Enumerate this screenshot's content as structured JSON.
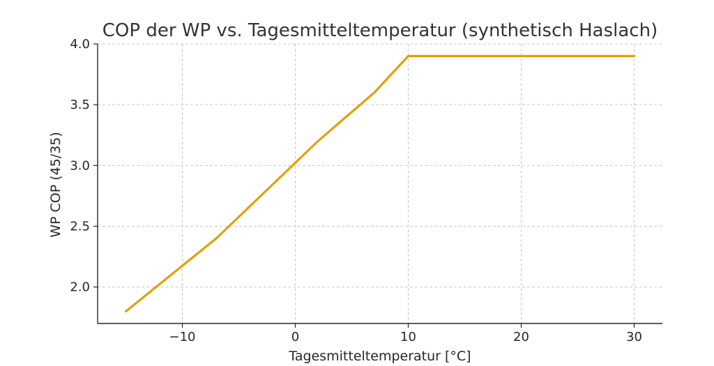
{
  "chart_data": {
    "type": "line",
    "title": "COP der WP vs. Tagesmitteltemperatur (synthetisch Haslach)",
    "xlabel": "Tagesmitteltemperatur [°C]",
    "ylabel": "WP COP (45/35)",
    "xlim": [
      -17.5,
      32.5
    ],
    "ylim": [
      1.7,
      4.0
    ],
    "xticks": [
      -10,
      0,
      10,
      20,
      30
    ],
    "xtick_labels": [
      "−10",
      "0",
      "10",
      "20",
      "30"
    ],
    "yticks": [
      2.0,
      2.5,
      3.0,
      3.5,
      4.0
    ],
    "ytick_labels": [
      "2.0",
      "2.5",
      "3.0",
      "3.5",
      "4.0"
    ],
    "grid": true,
    "legend": "none",
    "series": [
      {
        "color": "#E69F00",
        "x": [
          -15,
          -7,
          2,
          7,
          10,
          30
        ],
        "y": [
          1.8,
          2.4,
          3.2,
          3.6,
          3.9,
          3.9
        ]
      }
    ]
  }
}
